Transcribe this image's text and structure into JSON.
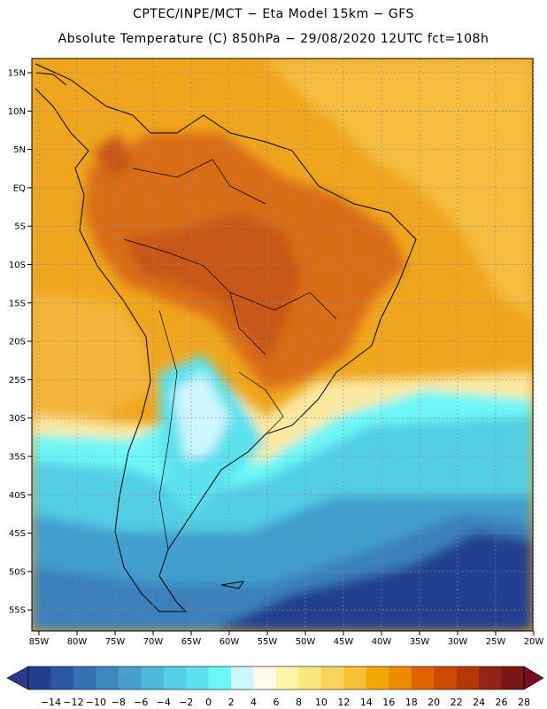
{
  "header": {
    "title_line1": "CPTEC/INPE/MCT −  Eta Model 15km − GFS",
    "title_line2": "Absolute Temperature (C) 850hPa − 29/08/2020 12UTC fct=108h"
  },
  "map": {
    "lat_labels": [
      "15N",
      "10N",
      "5N",
      "EQ",
      "5S",
      "10S",
      "15S",
      "20S",
      "25S",
      "30S",
      "35S",
      "40S",
      "45S",
      "50S",
      "55S"
    ],
    "lon_labels": [
      "85W",
      "80W",
      "75W",
      "70W",
      "65W",
      "60W",
      "55W",
      "50W",
      "45W",
      "40W",
      "35W",
      "30W",
      "25W",
      "20W"
    ]
  },
  "colorbar": {
    "labels": [
      "−14",
      "−12",
      "−10",
      "−8",
      "−6",
      "−4",
      "−2",
      "0",
      "2",
      "4",
      "6",
      "8",
      "10",
      "12",
      "14",
      "16",
      "18",
      "20",
      "22",
      "24",
      "26",
      "28"
    ],
    "colors": [
      "#24408f",
      "#2b58a0",
      "#3571b2",
      "#3f88bf",
      "#45a0cc",
      "#4db8d9",
      "#52cee5",
      "#5be2ee",
      "#6ef7f7",
      "#cdf6ff",
      "#fffbe8",
      "#fff7a8",
      "#fde880",
      "#f9d55a",
      "#f5c036",
      "#f2a800",
      "#ec8c00",
      "#e06400",
      "#cc4a00",
      "#b43700",
      "#932314",
      "#7a1616"
    ],
    "end_low": "#2a3a8c",
    "end_high": "#7a0a22"
  },
  "colors": {
    "ocean_warm": "#f0a51e",
    "ocean_pale": "#f5bc3e",
    "land_hot": "#d96d17",
    "land_hotter": "#c85714"
  }
}
